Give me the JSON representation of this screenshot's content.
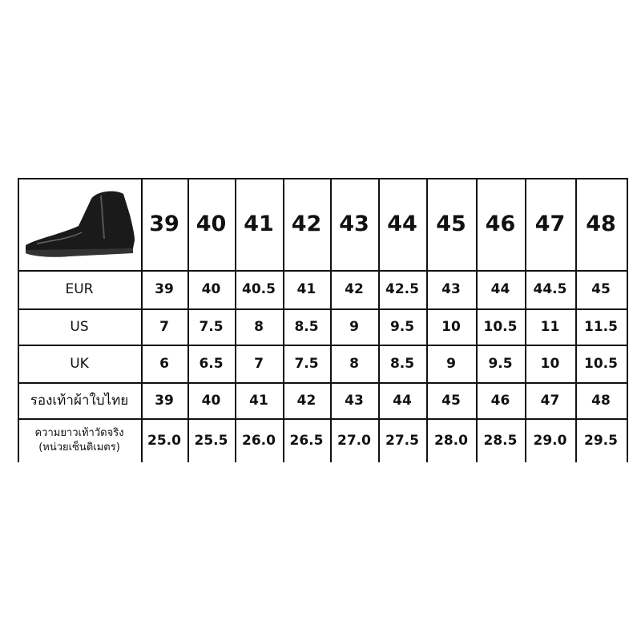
{
  "table": {
    "header": [
      "39",
      "40",
      "41",
      "42",
      "43",
      "44",
      "45",
      "46",
      "47",
      "48"
    ],
    "rows": [
      {
        "label": [
          "EUR"
        ],
        "values": [
          "39",
          "40",
          "40.5",
          "41",
          "42",
          "42.5",
          "43",
          "44",
          "44.5",
          "45"
        ]
      },
      {
        "label": [
          "US"
        ],
        "values": [
          "7",
          "7.5",
          "8",
          "8.5",
          "9",
          "9.5",
          "10",
          "10.5",
          "11",
          "11.5"
        ]
      },
      {
        "label": [
          "UK"
        ],
        "values": [
          "6",
          "6.5",
          "7",
          "7.5",
          "8",
          "8.5",
          "9",
          "9.5",
          "10",
          "10.5"
        ]
      },
      {
        "label": [
          "รองเท้าผ้าใบไทย"
        ],
        "values": [
          "39",
          "40",
          "41",
          "42",
          "43",
          "44",
          "45",
          "46",
          "47",
          "48"
        ]
      },
      {
        "label": [
          "ความยาวเท้าวัดจริง",
          "(หน่วยเซ็นติเมตร)"
        ],
        "values": [
          "25.0",
          "25.5",
          "26.0",
          "26.5",
          "27.0",
          "27.5",
          "28.0",
          "28.5",
          "29.0",
          "29.5"
        ]
      }
    ]
  }
}
